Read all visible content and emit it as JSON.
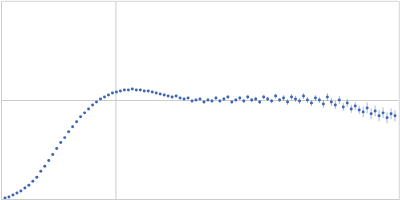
{
  "chart_data": {
    "type": "scatter",
    "x": [
      0.04,
      0.08,
      0.12,
      0.16,
      0.2,
      0.24,
      0.28,
      0.32,
      0.36,
      0.4,
      0.44,
      0.48,
      0.52,
      0.56,
      0.6,
      0.64,
      0.68,
      0.72,
      0.76,
      0.8,
      0.84,
      0.88,
      0.92,
      0.96,
      1.0,
      1.04,
      1.08,
      1.12,
      1.16,
      1.2,
      1.24,
      1.28,
      1.32,
      1.36,
      1.4,
      1.44,
      1.48,
      1.52,
      1.56,
      1.6,
      1.64,
      1.68,
      1.72,
      1.76,
      1.8,
      1.84,
      1.88,
      1.92,
      1.96,
      2.0,
      2.04,
      2.08,
      2.12,
      2.16,
      2.2,
      2.24,
      2.28,
      2.32,
      2.36,
      2.4,
      2.44,
      2.48,
      2.52,
      2.56,
      2.6,
      2.64,
      2.68,
      2.72,
      2.76,
      2.8,
      2.84,
      2.88,
      2.92,
      2.96,
      3.0,
      3.04,
      3.08,
      3.12,
      3.16,
      3.2,
      3.24,
      3.28,
      3.32,
      3.36,
      3.4,
      3.44,
      3.48,
      3.52,
      3.56,
      3.6,
      3.64,
      3.68,
      3.72,
      3.76,
      3.8,
      3.84,
      3.88,
      3.92,
      3.96
    ],
    "values": [
      0.01,
      0.02,
      0.04,
      0.06,
      0.08,
      0.11,
      0.14,
      0.18,
      0.22,
      0.28,
      0.33,
      0.39,
      0.45,
      0.51,
      0.57,
      0.62,
      0.68,
      0.73,
      0.78,
      0.83,
      0.87,
      0.91,
      0.95,
      0.98,
      1.01,
      1.03,
      1.05,
      1.07,
      1.08,
      1.09,
      1.1,
      1.1,
      1.11,
      1.1,
      1.1,
      1.09,
      1.09,
      1.08,
      1.07,
      1.06,
      1.05,
      1.04,
      1.03,
      1.04,
      1.02,
      1.01,
      1.02,
      0.99,
      1.0,
      1.01,
      0.98,
      1.0,
      0.99,
      1.02,
      0.99,
      1.01,
      1.03,
      0.98,
      1.0,
      1.02,
      0.99,
      1.03,
      1.0,
      1.01,
      0.98,
      1.03,
      1.01,
      0.99,
      1.04,
      1.0,
      1.02,
      0.98,
      1.03,
      1.01,
      0.99,
      1.04,
      1.0,
      0.97,
      1.02,
      1.0,
      0.96,
      1.03,
      0.98,
      0.95,
      1.0,
      0.93,
      0.97,
      0.91,
      0.94,
      0.9,
      0.88,
      0.92,
      0.86,
      0.89,
      0.84,
      0.87,
      0.82,
      0.86,
      0.84
    ],
    "errors": [
      0.004,
      0.004,
      0.004,
      0.004,
      0.004,
      0.004,
      0.004,
      0.004,
      0.004,
      0.004,
      0.005,
      0.005,
      0.005,
      0.005,
      0.005,
      0.005,
      0.005,
      0.005,
      0.005,
      0.005,
      0.006,
      0.006,
      0.006,
      0.006,
      0.006,
      0.006,
      0.006,
      0.006,
      0.006,
      0.006,
      0.008,
      0.008,
      0.008,
      0.008,
      0.008,
      0.008,
      0.008,
      0.008,
      0.008,
      0.008,
      0.012,
      0.012,
      0.012,
      0.012,
      0.012,
      0.012,
      0.012,
      0.012,
      0.012,
      0.012,
      0.016,
      0.016,
      0.016,
      0.016,
      0.016,
      0.016,
      0.016,
      0.016,
      0.016,
      0.016,
      0.022,
      0.022,
      0.022,
      0.022,
      0.022,
      0.022,
      0.022,
      0.022,
      0.022,
      0.022,
      0.03,
      0.03,
      0.03,
      0.03,
      0.03,
      0.03,
      0.03,
      0.03,
      0.03,
      0.03,
      0.04,
      0.04,
      0.04,
      0.04,
      0.04,
      0.04,
      0.04,
      0.04,
      0.04,
      0.04,
      0.055,
      0.055,
      0.055,
      0.055,
      0.055,
      0.055,
      0.055,
      0.055,
      0.055
    ],
    "color": "#3d65b5",
    "marker": "circle",
    "xlim": [
      0,
      4
    ],
    "ylim": [
      0,
      2
    ],
    "xticks": [
      1.15
    ],
    "yticks": [
      1
    ],
    "grid": true,
    "tick_labels": false
  }
}
